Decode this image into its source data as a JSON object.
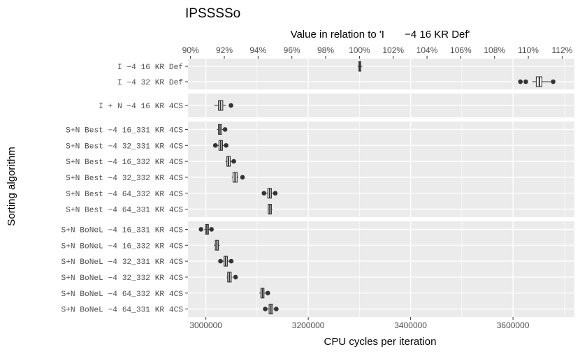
{
  "chart_data": {
    "type": "boxplot",
    "title": "IPSSSSo",
    "xlabel": "CPU cycles per iteration",
    "ylabel": "Sorting algorithm",
    "top_axis_label": "Value in relation to 'I       −4 16 KR Def'",
    "baseline": 3300000,
    "xlim": [
      2965000,
      3720000
    ],
    "bottom_ticks": [
      3000000,
      3200000,
      3400000,
      3600000
    ],
    "bottom_tick_labels": [
      "3000000",
      "3200000",
      "3400000",
      "3600000"
    ],
    "top_ticks": [
      90,
      92,
      94,
      96,
      98,
      100,
      102,
      104,
      106,
      108,
      110,
      112
    ],
    "top_tick_labels": [
      "90%",
      "92%",
      "94%",
      "96%",
      "98%",
      "100%",
      "102%",
      "104%",
      "106%",
      "108%",
      "110%",
      "112%"
    ],
    "panels": [
      {
        "rows": [
          {
            "label": "I       −4 16 KR Def",
            "q1": 3299000,
            "median": 3300500,
            "q3": 3302500,
            "wlo": 3296500,
            "whi": 3305500,
            "outliers": []
          },
          {
            "label": "I       −4 32 KR Def",
            "q1": 3645500,
            "median": 3651500,
            "q3": 3656500,
            "wlo": 3637500,
            "whi": 3673500,
            "outliers": [
              3614500,
              3625000,
              3678500
            ]
          }
        ]
      },
      {
        "rows": [
          {
            "label": "I + N       −4 16 KR 4CS",
            "q1": 3024500,
            "median": 3028500,
            "q3": 3033000,
            "wlo": 3016500,
            "whi": 3039500,
            "outliers": [
              3049000
            ]
          }
        ]
      },
      {
        "rows": [
          {
            "label": "S+N Best  −4 16_331 KR 4CS",
            "q1": 3024500,
            "median": 3027500,
            "q3": 3030500,
            "wlo": 3021500,
            "whi": 3034000,
            "outliers": [
              3037500
            ]
          },
          {
            "label": "S+N Best  −4 32_331 KR 4CS",
            "q1": 3025500,
            "median": 3029000,
            "q3": 3032500,
            "wlo": 3022500,
            "whi": 3036500,
            "outliers": [
              3018500,
              3039500
            ]
          },
          {
            "label": "S+N Best  −4 16_332 KR 4CS",
            "q1": 3041000,
            "median": 3044000,
            "q3": 3047500,
            "wlo": 3038000,
            "whi": 3050500,
            "outliers": [
              3054500
            ]
          },
          {
            "label": "S+N Best  −4 32_332 KR 4CS",
            "q1": 3053000,
            "median": 3057000,
            "q3": 3061000,
            "wlo": 3050500,
            "whi": 3063500,
            "outliers": [
              3071500
            ]
          },
          {
            "label": "S+N Best  −4 64_332 KR 4CS",
            "q1": 3121000,
            "median": 3124500,
            "q3": 3128000,
            "wlo": 3118000,
            "whi": 3131000,
            "outliers": [
              3113500,
              3135500
            ]
          },
          {
            "label": "S+N Best  −4 64_331 KR 4CS",
            "q1": 3122000,
            "median": 3125000,
            "q3": 3128000,
            "wlo": 3120500,
            "whi": 3130000,
            "outliers": []
          }
        ]
      },
      {
        "rows": [
          {
            "label": "S+N BoNeL −4 16_331 KR 4CS",
            "q1": 2999500,
            "median": 3002000,
            "q3": 3005000,
            "wlo": 2997000,
            "whi": 3008000,
            "outliers": [
              2990500,
              3011000
            ]
          },
          {
            "label": "S+N BoNeL −4 16_332 KR 4CS",
            "q1": 3018500,
            "median": 3021500,
            "q3": 3024500,
            "wlo": 3015500,
            "whi": 3027000,
            "outliers": []
          },
          {
            "label": "S+N BoNeL −4 32_331 KR 4CS",
            "q1": 3035500,
            "median": 3038500,
            "q3": 3042000,
            "wlo": 3032000,
            "whi": 3045000,
            "outliers": [
              3028500,
              3049500
            ]
          },
          {
            "label": "S+N BoNeL −4 32_332 KR 4CS",
            "q1": 3042500,
            "median": 3046000,
            "q3": 3049500,
            "wlo": 3040500,
            "whi": 3052000,
            "outliers": [
              3058000
            ]
          },
          {
            "label": "S+N BoNeL −4 64_332 KR 4CS",
            "q1": 3107500,
            "median": 3110500,
            "q3": 3113500,
            "wlo": 3104500,
            "whi": 3116500,
            "outliers": [
              3121000
            ]
          },
          {
            "label": "S+N BoNeL −4 64_331 KR 4CS",
            "q1": 3123500,
            "median": 3127000,
            "q3": 3130500,
            "wlo": 3120500,
            "whi": 3133500,
            "outliers": [
              3116000,
              3137500
            ]
          }
        ]
      }
    ]
  }
}
